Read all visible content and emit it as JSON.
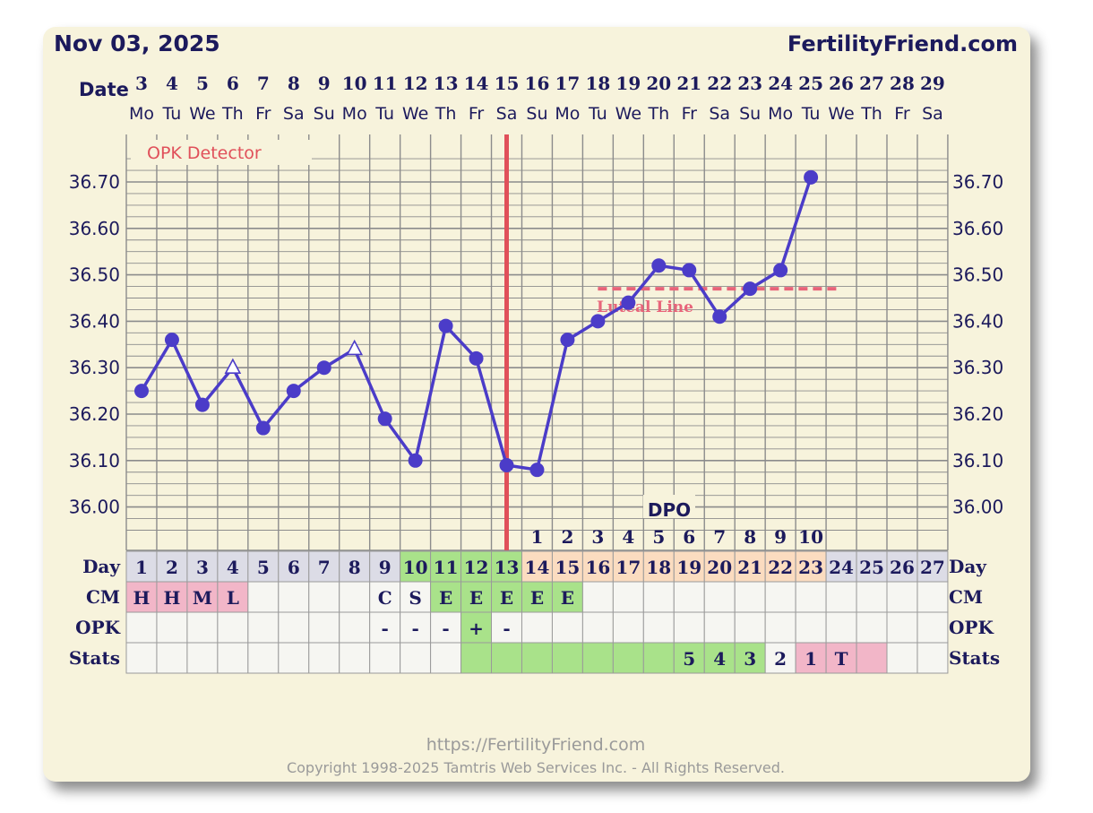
{
  "header": {
    "date": "Nov 03, 2025",
    "site": "FertilityFriend.com",
    "date_label": "Date"
  },
  "colors": {
    "line": "#4b3cc8",
    "coverline": "#e8647a",
    "ovulation": "#e0505a",
    "grid": "#8c8c8c",
    "text": "#1c1a5c",
    "pink": "#f2b6c8",
    "green": "#a9e28a",
    "peach": "#fbdcc0",
    "lavender": "#dcdce6",
    "cell": "#f6f6f2"
  },
  "labels": {
    "opk_detector": "OPK Detector",
    "luteal_line": "Luteal Line",
    "dpo": "DPO",
    "day": "Day",
    "cm": "CM",
    "opk": "OPK",
    "stats": "Stats"
  },
  "footer": {
    "url": "https://FertilityFriend.com",
    "copyright": "Copyright 1998-2025 Tamtris Web Services Inc. - All Rights Reserved."
  },
  "chart_data": {
    "type": "line",
    "dates": [
      "3",
      "4",
      "5",
      "6",
      "7",
      "8",
      "9",
      "10",
      "11",
      "12",
      "13",
      "14",
      "15",
      "16",
      "17",
      "18",
      "19",
      "20",
      "21",
      "22",
      "23",
      "24",
      "25",
      "26",
      "27",
      "28",
      "29"
    ],
    "weekdays": [
      "Mo",
      "Tu",
      "We",
      "Th",
      "Fr",
      "Sa",
      "Su",
      "Mo",
      "Tu",
      "We",
      "Th",
      "Fr",
      "Sa",
      "Su",
      "Mo",
      "Tu",
      "We",
      "Th",
      "Fr",
      "Sa",
      "Su",
      "Mo",
      "Tu",
      "We",
      "Th",
      "Fr",
      "Sa"
    ],
    "cycle_days": [
      "1",
      "2",
      "3",
      "4",
      "5",
      "6",
      "7",
      "8",
      "9",
      "10",
      "11",
      "12",
      "13",
      "14",
      "15",
      "16",
      "17",
      "18",
      "19",
      "20",
      "21",
      "22",
      "23",
      "24",
      "25",
      "26",
      "27"
    ],
    "temperatures": [
      36.25,
      36.36,
      36.22,
      36.3,
      36.17,
      36.25,
      36.3,
      36.34,
      36.19,
      36.1,
      36.39,
      36.32,
      36.09,
      36.08,
      36.36,
      36.4,
      36.44,
      36.52,
      36.51,
      36.41,
      36.47,
      36.51,
      36.71,
      null,
      null,
      null,
      null
    ],
    "point_markers": [
      "dot",
      "dot",
      "dot",
      "triangle",
      "dot",
      "dot",
      "dot",
      "triangle",
      "dot",
      "dot",
      "dot",
      "dot",
      "dot",
      "dot",
      "dot",
      "dot",
      "dot",
      "dot",
      "dot",
      "dot",
      "dot",
      "dot",
      "dot",
      "",
      "",
      "",
      ""
    ],
    "y_ticks": [
      "36.70",
      "36.60",
      "36.50",
      "36.40",
      "36.30",
      "36.20",
      "36.10",
      "36.00"
    ],
    "ylim": [
      35.935,
      36.785
    ],
    "ovulation_day_index": 12,
    "coverline": {
      "value": 36.47,
      "start_index": 15,
      "end_index": 22
    },
    "dpo": [
      "",
      "",
      "",
      "",
      "",
      "",
      "",
      "",
      "",
      "",
      "",
      "",
      "",
      "1",
      "2",
      "3",
      "4",
      "5",
      "6",
      "7",
      "8",
      "9",
      "10",
      "",
      "",
      "",
      ""
    ],
    "cm": [
      "H",
      "H",
      "M",
      "L",
      "",
      "",
      "",
      "",
      "C",
      "S",
      "E",
      "E",
      "E",
      "E",
      "E",
      "",
      "",
      "",
      "",
      "",
      "",
      "",
      "",
      "",
      "",
      "",
      ""
    ],
    "opk": [
      "",
      "",
      "",
      "",
      "",
      "",
      "",
      "",
      "-",
      "-",
      "-",
      "+",
      "-",
      "",
      "",
      "",
      "",
      "",
      "",
      "",
      "",
      "",
      "",
      "",
      "",
      "",
      ""
    ],
    "stats": [
      "",
      "",
      "",
      "",
      "",
      "",
      "",
      "",
      "",
      "",
      "",
      "",
      "",
      "",
      "",
      "",
      "",
      "",
      "5",
      "4",
      "3",
      "2",
      "1",
      "T",
      "",
      "",
      ""
    ],
    "day_fill": [
      "lavender",
      "lavender",
      "lavender",
      "lavender",
      "lavender",
      "lavender",
      "lavender",
      "lavender",
      "lavender",
      "green",
      "green",
      "green",
      "green",
      "peach",
      "peach",
      "peach",
      "peach",
      "peach",
      "peach",
      "peach",
      "peach",
      "peach",
      "peach",
      "lavender",
      "lavender",
      "lavender",
      "lavender"
    ],
    "cm_fill": [
      "pink",
      "pink",
      "pink",
      "pink",
      "",
      "",
      "",
      "",
      "",
      "",
      "green",
      "green",
      "green",
      "green",
      "green",
      "",
      "",
      "",
      "",
      "",
      "",
      "",
      "",
      "",
      "",
      "",
      ""
    ],
    "opk_fill": [
      "",
      "",
      "",
      "",
      "",
      "",
      "",
      "",
      "",
      "",
      "",
      "green",
      "",
      "",
      "",
      "",
      "",
      "",
      "",
      "",
      "",
      "",
      "",
      "",
      "",
      "",
      ""
    ],
    "stats_fill": [
      "",
      "",
      "",
      "",
      "",
      "",
      "",
      "",
      "",
      "",
      "",
      "green",
      "green",
      "green",
      "green",
      "green",
      "green",
      "green",
      "green",
      "green",
      "green",
      "",
      "pink",
      "pink",
      "pink",
      "",
      ""
    ],
    "grid": true
  }
}
